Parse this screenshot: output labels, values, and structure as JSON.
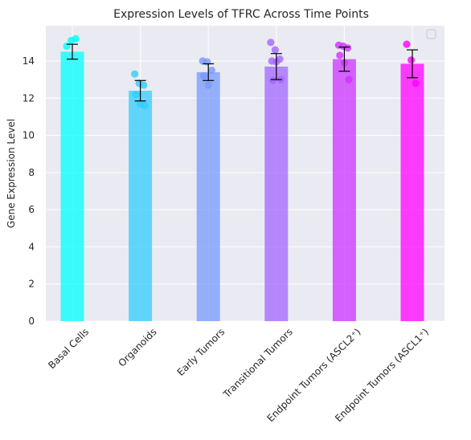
{
  "chart_data": {
    "type": "bar",
    "title": "Expression Levels of TFRC Across Time Points",
    "xlabel": "",
    "ylabel": "Gene Expression Level",
    "ylim": [
      0,
      15.9
    ],
    "yticks": [
      0,
      2,
      4,
      6,
      8,
      10,
      12,
      14
    ],
    "grid": true,
    "legend": "top-right (empty)",
    "categories": [
      "Basal Cells",
      "Organoids",
      "Early Tumors",
      "Transitional Tumors",
      "Endpoint Tumors (ASCL2⁺)",
      "Endpoint Tumors (ASCL1⁺)"
    ],
    "values": [
      14.5,
      12.4,
      13.4,
      13.7,
      14.1,
      13.85
    ],
    "errors": [
      0.4,
      0.55,
      0.45,
      0.7,
      0.65,
      0.75
    ],
    "colors": [
      "#00ffff",
      "#33ccff",
      "#7799ff",
      "#a366ff",
      "#cc33ff",
      "#ff00ff"
    ],
    "points": [
      [
        14.8,
        15.1,
        15.2
      ],
      [
        13.3,
        12.8,
        12.7,
        12.2,
        11.7,
        11.6
      ],
      [
        14.0,
        13.95,
        13.5,
        13.2,
        12.7
      ],
      [
        15.0,
        14.6,
        14.1,
        14.0,
        13.95,
        13.0,
        12.95
      ],
      [
        14.85,
        14.8,
        14.7,
        14.3,
        13.9,
        13.0
      ],
      [
        14.9,
        14.05,
        12.8
      ]
    ]
  }
}
